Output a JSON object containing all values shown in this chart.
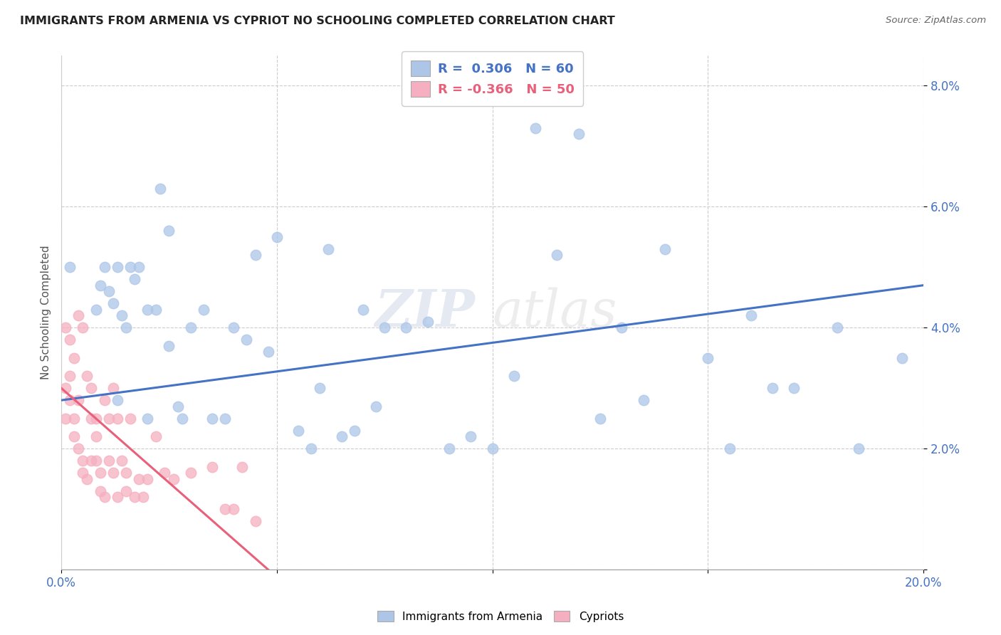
{
  "title": "IMMIGRANTS FROM ARMENIA VS CYPRIOT NO SCHOOLING COMPLETED CORRELATION CHART",
  "source": "Source: ZipAtlas.com",
  "ylabel": "No Schooling Completed",
  "xlim": [
    0.0,
    0.2
  ],
  "ylim": [
    0.0,
    0.085
  ],
  "xticks": [
    0.0,
    0.05,
    0.1,
    0.15,
    0.2
  ],
  "yticks": [
    0.0,
    0.02,
    0.04,
    0.06,
    0.08
  ],
  "ytick_labels": [
    "",
    "2.0%",
    "4.0%",
    "6.0%",
    "8.0%"
  ],
  "xtick_labels": [
    "0.0%",
    "",
    "",
    "",
    "20.0%"
  ],
  "legend_r_blue": "0.306",
  "legend_n_blue": "60",
  "legend_r_pink": "-0.366",
  "legend_n_pink": "50",
  "blue_color": "#adc6e8",
  "pink_color": "#f5afc0",
  "blue_line_color": "#4472c4",
  "pink_line_color": "#e8607a",
  "watermark_zip": "ZIP",
  "watermark_atlas": "atlas",
  "blue_line_x": [
    0.0,
    0.2
  ],
  "blue_line_y": [
    0.028,
    0.047
  ],
  "pink_line_x": [
    0.0,
    0.048
  ],
  "pink_line_y": [
    0.03,
    0.0
  ],
  "blue_x": [
    0.002,
    0.008,
    0.009,
    0.01,
    0.011,
    0.012,
    0.013,
    0.013,
    0.014,
    0.015,
    0.016,
    0.017,
    0.018,
    0.02,
    0.02,
    0.022,
    0.023,
    0.025,
    0.025,
    0.027,
    0.028,
    0.03,
    0.033,
    0.035,
    0.038,
    0.04,
    0.043,
    0.045,
    0.048,
    0.05,
    0.055,
    0.058,
    0.06,
    0.062,
    0.065,
    0.068,
    0.07,
    0.073,
    0.075,
    0.08,
    0.085,
    0.09,
    0.095,
    0.1,
    0.105,
    0.11,
    0.115,
    0.12,
    0.125,
    0.13,
    0.135,
    0.14,
    0.15,
    0.155,
    0.16,
    0.165,
    0.17,
    0.18,
    0.185,
    0.195
  ],
  "blue_y": [
    0.05,
    0.043,
    0.047,
    0.05,
    0.046,
    0.044,
    0.028,
    0.05,
    0.042,
    0.04,
    0.05,
    0.048,
    0.05,
    0.043,
    0.025,
    0.043,
    0.063,
    0.037,
    0.056,
    0.027,
    0.025,
    0.04,
    0.043,
    0.025,
    0.025,
    0.04,
    0.038,
    0.052,
    0.036,
    0.055,
    0.023,
    0.02,
    0.03,
    0.053,
    0.022,
    0.023,
    0.043,
    0.027,
    0.04,
    0.04,
    0.041,
    0.02,
    0.022,
    0.02,
    0.032,
    0.073,
    0.052,
    0.072,
    0.025,
    0.04,
    0.028,
    0.053,
    0.035,
    0.02,
    0.042,
    0.03,
    0.03,
    0.04,
    0.02,
    0.035
  ],
  "pink_x": [
    0.001,
    0.001,
    0.001,
    0.002,
    0.002,
    0.002,
    0.003,
    0.003,
    0.003,
    0.004,
    0.004,
    0.004,
    0.005,
    0.005,
    0.005,
    0.006,
    0.006,
    0.007,
    0.007,
    0.007,
    0.008,
    0.008,
    0.008,
    0.009,
    0.009,
    0.01,
    0.01,
    0.011,
    0.011,
    0.012,
    0.012,
    0.013,
    0.013,
    0.014,
    0.015,
    0.015,
    0.016,
    0.017,
    0.018,
    0.019,
    0.02,
    0.022,
    0.024,
    0.026,
    0.03,
    0.035,
    0.038,
    0.04,
    0.042,
    0.045
  ],
  "pink_y": [
    0.04,
    0.025,
    0.03,
    0.038,
    0.028,
    0.032,
    0.035,
    0.025,
    0.022,
    0.042,
    0.028,
    0.02,
    0.04,
    0.018,
    0.016,
    0.032,
    0.015,
    0.025,
    0.018,
    0.03,
    0.018,
    0.025,
    0.022,
    0.013,
    0.016,
    0.028,
    0.012,
    0.025,
    0.018,
    0.03,
    0.016,
    0.025,
    0.012,
    0.018,
    0.013,
    0.016,
    0.025,
    0.012,
    0.015,
    0.012,
    0.015,
    0.022,
    0.016,
    0.015,
    0.016,
    0.017,
    0.01,
    0.01,
    0.017,
    0.008
  ]
}
